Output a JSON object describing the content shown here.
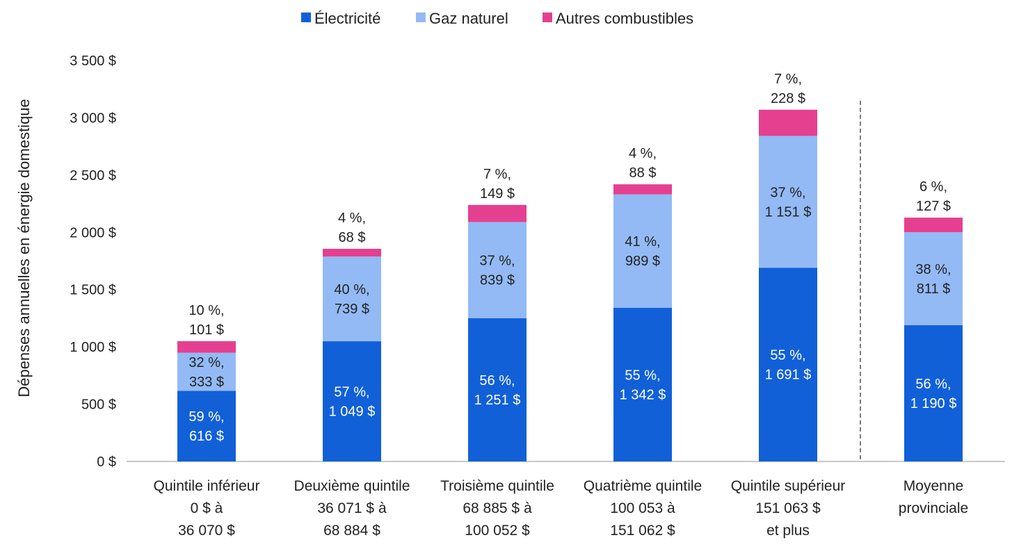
{
  "chart_data": {
    "type": "bar",
    "stacked": true,
    "title": "",
    "xlabel": "",
    "ylabel": "Dépenses annuelles en énergie domestique",
    "ylim": [
      0,
      3500
    ],
    "yticks": [
      {
        "value": 0,
        "label": "0 $"
      },
      {
        "value": 500,
        "label": "500 $"
      },
      {
        "value": 1000,
        "label": "1 000 $"
      },
      {
        "value": 1500,
        "label": "1 500 $"
      },
      {
        "value": 2000,
        "label": "2 000 $"
      },
      {
        "value": 2500,
        "label": "2 500 $"
      },
      {
        "value": 3000,
        "label": "3 000 $"
      },
      {
        "value": 3500,
        "label": "3 500 $"
      }
    ],
    "legend_position": "top-center",
    "categories": [
      [
        "Quintile inférieur",
        "0 $ à",
        "36 070 $"
      ],
      [
        "Deuxième quintile",
        "36 071 $ à",
        "68 884 $"
      ],
      [
        "Troisième quintile",
        "68 885 $ à",
        "100 052 $"
      ],
      [
        "Quatrième quintile",
        "100 053 à",
        "151 062 $"
      ],
      [
        "Quintile supérieur",
        "151 063 $",
        "et plus"
      ],
      [
        "Moyenne",
        "provinciale"
      ]
    ],
    "separator_before_category": 5,
    "series": [
      {
        "name": "Électricité",
        "color": "#1160d8",
        "values": [
          616,
          1049,
          1251,
          1342,
          1691,
          1190
        ],
        "labels": [
          [
            "59 %,",
            "616 $"
          ],
          [
            "57 %,",
            "1 049 $"
          ],
          [
            "56 %,",
            "1 251 $"
          ],
          [
            "55 %,",
            "1 342 $"
          ],
          [
            "55 %,",
            "1 691 $"
          ],
          [
            "56 %,",
            "1 190 $"
          ]
        ]
      },
      {
        "name": "Gaz naturel",
        "color": "#93baf5",
        "values": [
          333,
          739,
          839,
          989,
          1151,
          811
        ],
        "labels": [
          [
            "32 %,",
            "333 $"
          ],
          [
            "40 %,",
            "739 $"
          ],
          [
            "37 %,",
            "839 $"
          ],
          [
            "41 %,",
            "989 $"
          ],
          [
            "37 %,",
            "1 151 $"
          ],
          [
            "38 %,",
            "811 $"
          ]
        ]
      },
      {
        "name": "Autres combustibles",
        "color": "#e5408f",
        "values": [
          101,
          68,
          149,
          88,
          228,
          127
        ],
        "labels": [
          [
            "10 %,",
            "101 $"
          ],
          [
            "4 %,",
            "68 $"
          ],
          [
            "7 %,",
            "149 $"
          ],
          [
            "4 %,",
            "88 $"
          ],
          [
            "7 %,",
            "228 $"
          ],
          [
            "6 %,",
            "127 $"
          ]
        ]
      }
    ]
  }
}
